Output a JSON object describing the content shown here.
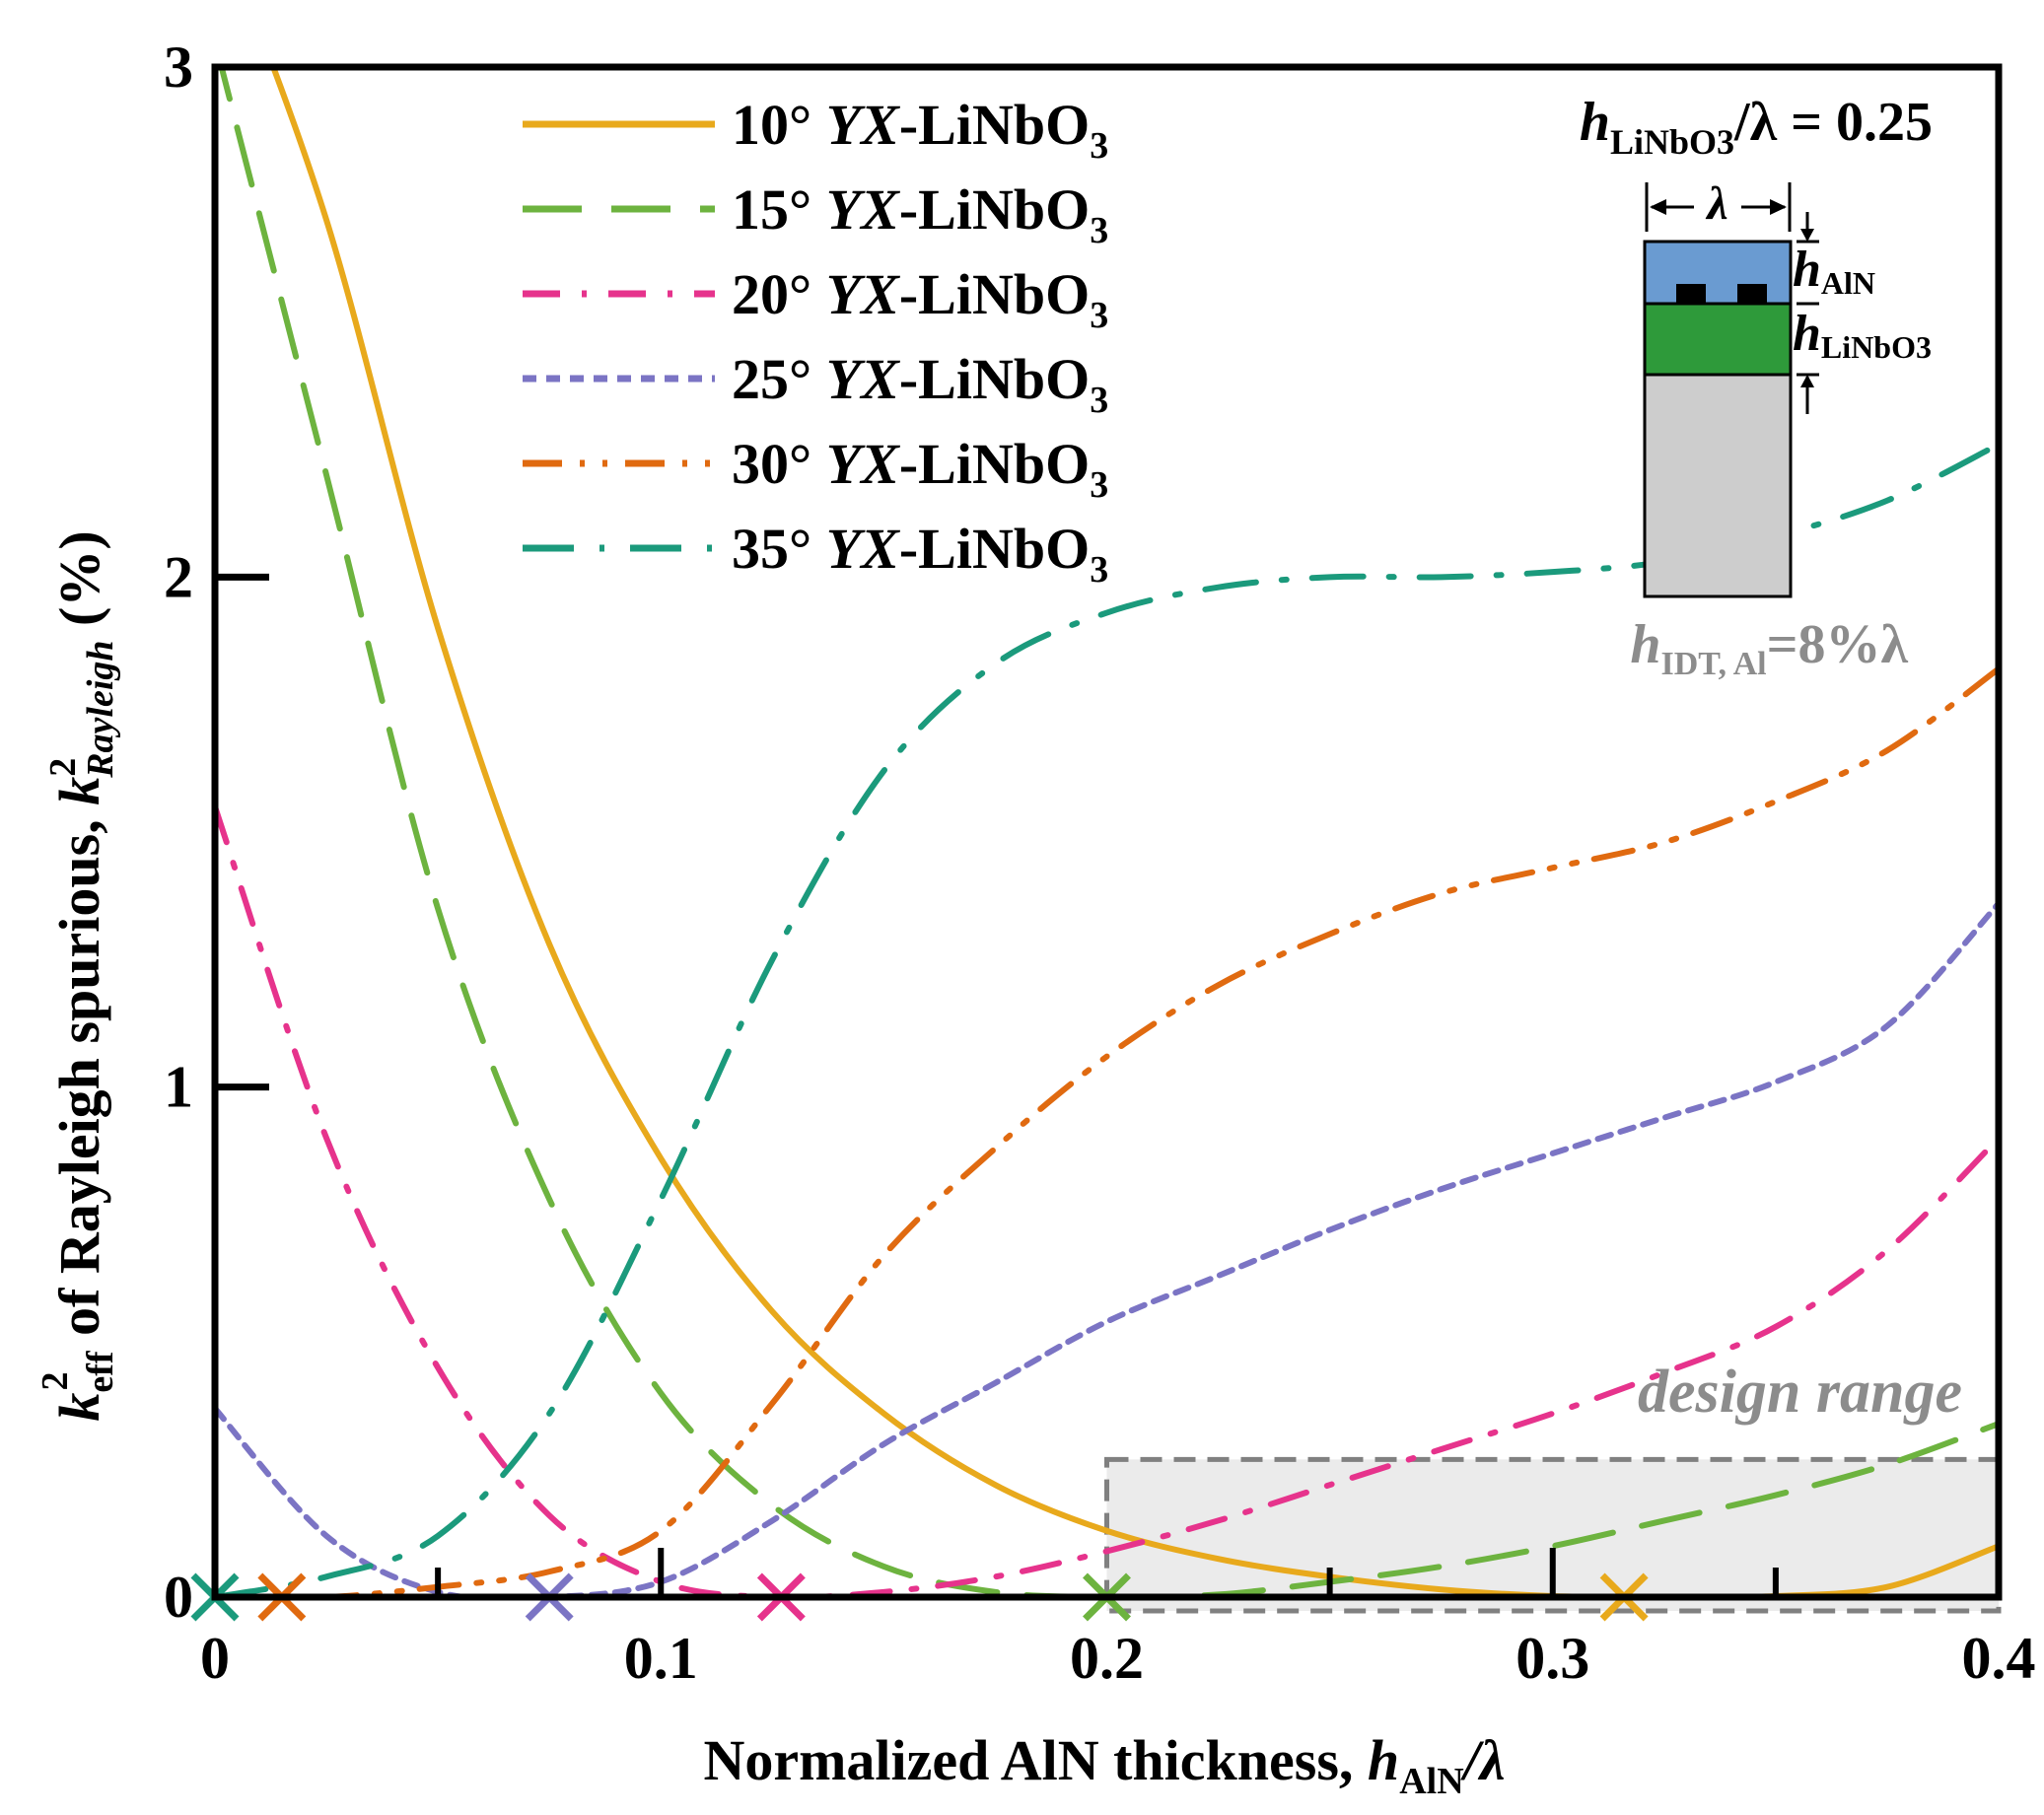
{
  "chart_data": {
    "type": "line",
    "xlabel_text": "Normalized AlN thickness, ",
    "xlabel_var": "h",
    "xlabel_sub": "AlN",
    "xlabel_tail": "/λ",
    "ylabel_k": "k",
    "ylabel_eff": "eff",
    "ylabel_sup": "2",
    "ylabel_mid": " of Rayleigh spurious, ",
    "ylabel_k2": "k",
    "ylabel_sup2": "2",
    "ylabel_sub2": "Rayleigh",
    "ylabel_unit": " (%)",
    "xlim": [
      0,
      0.4
    ],
    "ylim": [
      0,
      3
    ],
    "x_ticks": [
      0,
      0.1,
      0.2,
      0.3,
      0.4
    ],
    "x_tick_labels": [
      "0",
      "0.1",
      "0.2",
      "0.3",
      "0.4"
    ],
    "x_minor_ticks": [
      0.05,
      0.1,
      0.25,
      0.3,
      0.35
    ],
    "y_ticks": [
      0,
      1,
      2,
      3
    ],
    "y_tick_labels": [
      "0",
      "1",
      "2",
      "3"
    ],
    "x": [
      0.0,
      0.025,
      0.05,
      0.075,
      0.1,
      0.125,
      0.15,
      0.175,
      0.2,
      0.225,
      0.25,
      0.275,
      0.3,
      0.325,
      0.35,
      0.375,
      0.4
    ],
    "series": [
      {
        "name": "10° YX-LiNbO3",
        "angle": "10°",
        "color": "#E8A91C",
        "dash": "solid",
        "values": [
          3.3,
          2.7,
          1.9,
          1.28,
          0.86,
          0.56,
          0.36,
          0.22,
          0.13,
          0.075,
          0.04,
          0.015,
          0.002,
          0.0,
          0.002,
          0.02,
          0.1
        ],
        "zero_x": 0.316
      },
      {
        "name": "15° YX-LiNbO3",
        "angle": "15°",
        "color": "#6DB33F",
        "dash": "long-dash",
        "values": [
          3.05,
          2.2,
          1.35,
          0.78,
          0.4,
          0.18,
          0.06,
          0.01,
          0.0,
          0.005,
          0.03,
          0.06,
          0.1,
          0.15,
          0.2,
          0.26,
          0.34
        ],
        "zero_x": 0.2
      },
      {
        "name": "20° YX-LiNbO3",
        "angle": "20°",
        "color": "#E6338C",
        "dash": "dash-dot",
        "values": [
          1.55,
          0.9,
          0.45,
          0.16,
          0.03,
          0.0,
          0.01,
          0.04,
          0.09,
          0.15,
          0.22,
          0.29,
          0.36,
          0.44,
          0.53,
          0.68,
          0.9
        ],
        "zero_x": 0.127
      },
      {
        "name": "25° YX-LiNbO3",
        "angle": "25°",
        "color": "#7B74C4",
        "dash": "short-dash",
        "values": [
          0.37,
          0.12,
          0.01,
          0.0,
          0.03,
          0.15,
          0.3,
          0.42,
          0.54,
          0.63,
          0.72,
          0.8,
          0.87,
          0.94,
          1.01,
          1.12,
          1.36
        ],
        "zero_x": 0.075
      },
      {
        "name": "30° YX-LiNbO3",
        "angle": "30°",
        "color": "#E06A10",
        "dash": "dash-dot-dot",
        "values": [
          0.0,
          0.0,
          0.02,
          0.05,
          0.13,
          0.38,
          0.67,
          0.88,
          1.06,
          1.2,
          1.3,
          1.38,
          1.43,
          1.48,
          1.56,
          1.66,
          1.82
        ],
        "zero_x": 0.015
      },
      {
        "name": "35° YX-LiNbO3",
        "angle": "35°",
        "color": "#1B9A7C",
        "dash": "dash-dot-long",
        "values": [
          0.0,
          0.04,
          0.12,
          0.36,
          0.78,
          1.25,
          1.62,
          1.83,
          1.93,
          1.98,
          2.0,
          2.0,
          2.01,
          2.03,
          2.08,
          2.15,
          2.26
        ],
        "zero_x": 0.0
      }
    ],
    "design_range": {
      "label": "design range",
      "x_range": [
        0.2,
        0.4
      ],
      "y_range": [
        0,
        0.27
      ]
    },
    "legend_placement": "top-left"
  },
  "legend": {
    "suffix_italic": "YX",
    "suffix_text": "-LiNbO",
    "suffix_sub": "3"
  },
  "inset": {
    "param_var": "h",
    "param_sub": "LiNbO3",
    "param_tail": "/λ = 0.25",
    "lambda_label": "λ",
    "layer_aln_var": "h",
    "layer_aln_sub": "AlN",
    "layer_linbo3_var": "h",
    "layer_linbo3_sub": "LiNbO3",
    "idt_var": "h",
    "idt_sub": "IDT, Al",
    "idt_tail": "=8%λ",
    "colors": {
      "aln": "#6A9BD1",
      "linbo3": "#2E9A3A",
      "substrate": "#CDCDCD",
      "electrode": "#000000"
    }
  }
}
